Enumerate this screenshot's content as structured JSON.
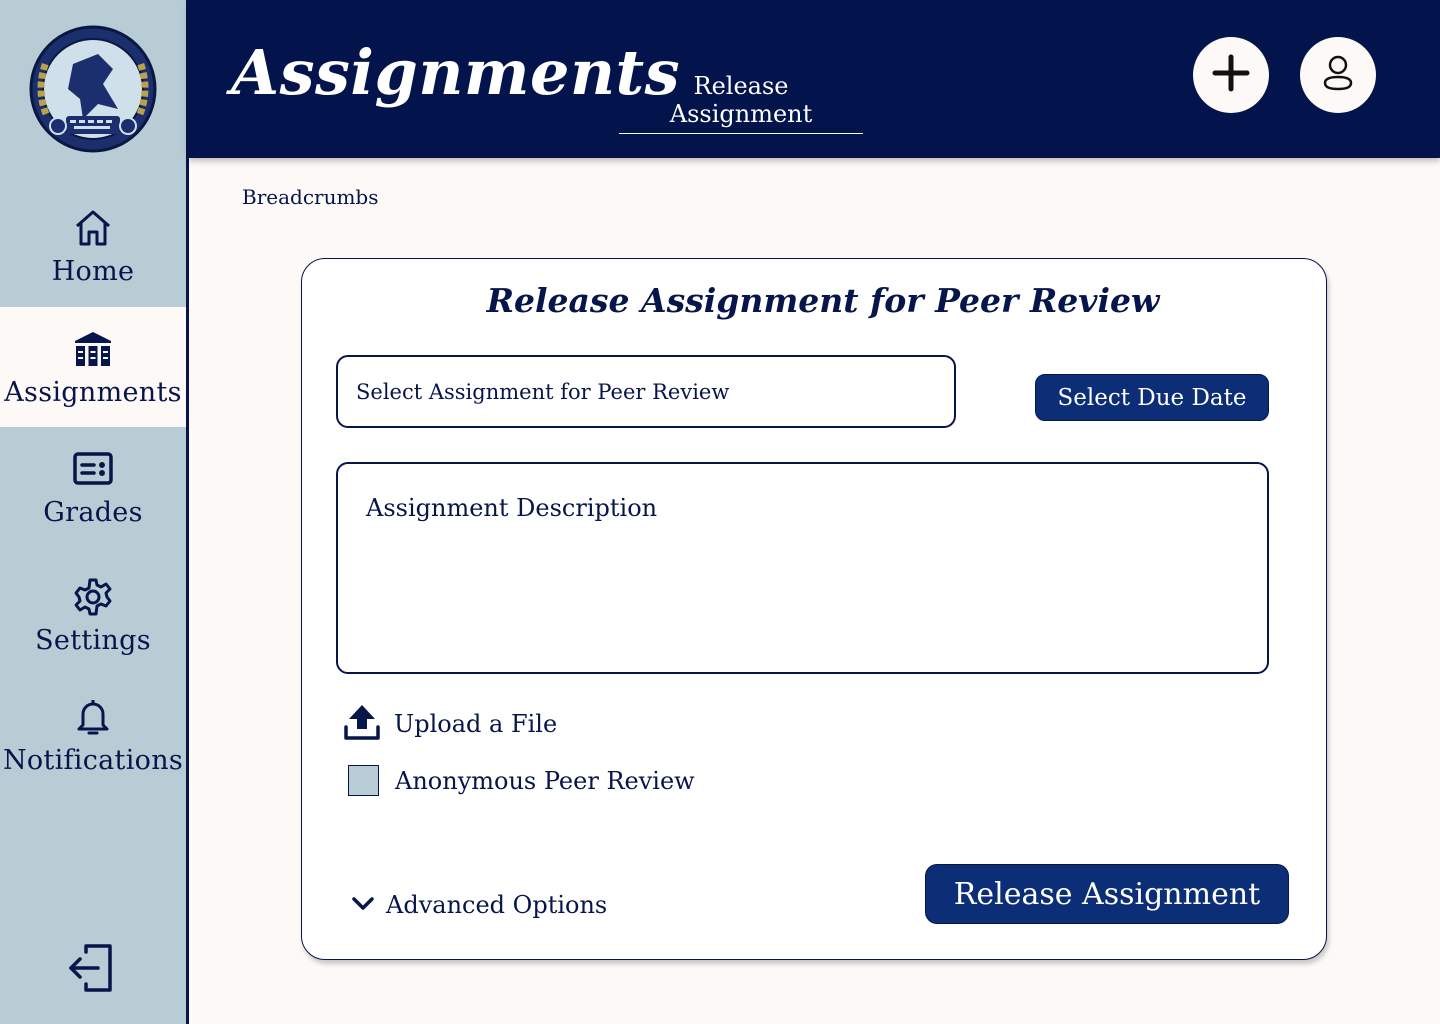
{
  "header": {
    "title": "Assignments",
    "sub_link": "Release Assignment",
    "add_icon": "plus-icon",
    "profile_icon": "user-icon"
  },
  "breadcrumbs": "Breadcrumbs",
  "sidebar": {
    "items": [
      {
        "label": "Home",
        "icon": "home-icon",
        "active": false
      },
      {
        "label": "Assignments",
        "icon": "library-icon",
        "active": true
      },
      {
        "label": "Grades",
        "icon": "grades-card-icon",
        "active": false
      },
      {
        "label": "Settings",
        "icon": "gear-icon",
        "active": false
      },
      {
        "label": "Notifications",
        "icon": "bell-icon",
        "active": false
      }
    ],
    "logout_icon": "logout-icon"
  },
  "form": {
    "title": "Release Assignment for Peer Review",
    "select_placeholder": "Select Assignment for Peer Review",
    "due_date_label": "Select Due Date",
    "description_placeholder": "Assignment Description",
    "upload_label": "Upload a File",
    "anonymous_label": "Anonymous Peer Review",
    "anonymous_checked": false,
    "advanced_label": "Advanced Options",
    "release_label": "Release Assignment"
  },
  "colors": {
    "navy": "#02144b",
    "button_blue": "#0c2e77",
    "sidebar_bg": "#b8ccd6",
    "page_bg": "#fdf9f6"
  }
}
